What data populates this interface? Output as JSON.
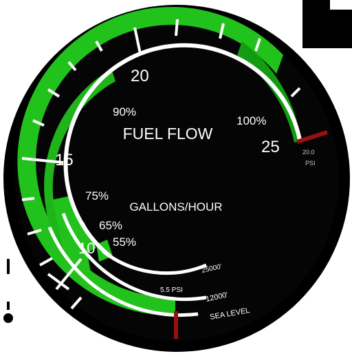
{
  "gauge": {
    "title": "FUEL FLOW",
    "units": "GALLONS/HOUR",
    "scale_labels": [
      "10",
      "15",
      "20",
      "25"
    ],
    "percent_labels": [
      "55%",
      "65%",
      "75%",
      "90%",
      "100%"
    ],
    "pressure_labels": [
      "5.5 PSI",
      "20.0",
      "PSI"
    ],
    "altitude_labels": [
      "25000'",
      "12000'",
      "SEA LEVEL"
    ]
  },
  "colors": {
    "background": "#000000",
    "bezel": "#000000",
    "green": "#22c21c",
    "dark_green": "#139c12",
    "white": "#ffffff",
    "red": "#9a1010",
    "dim_text": "#c8c8c8"
  }
}
